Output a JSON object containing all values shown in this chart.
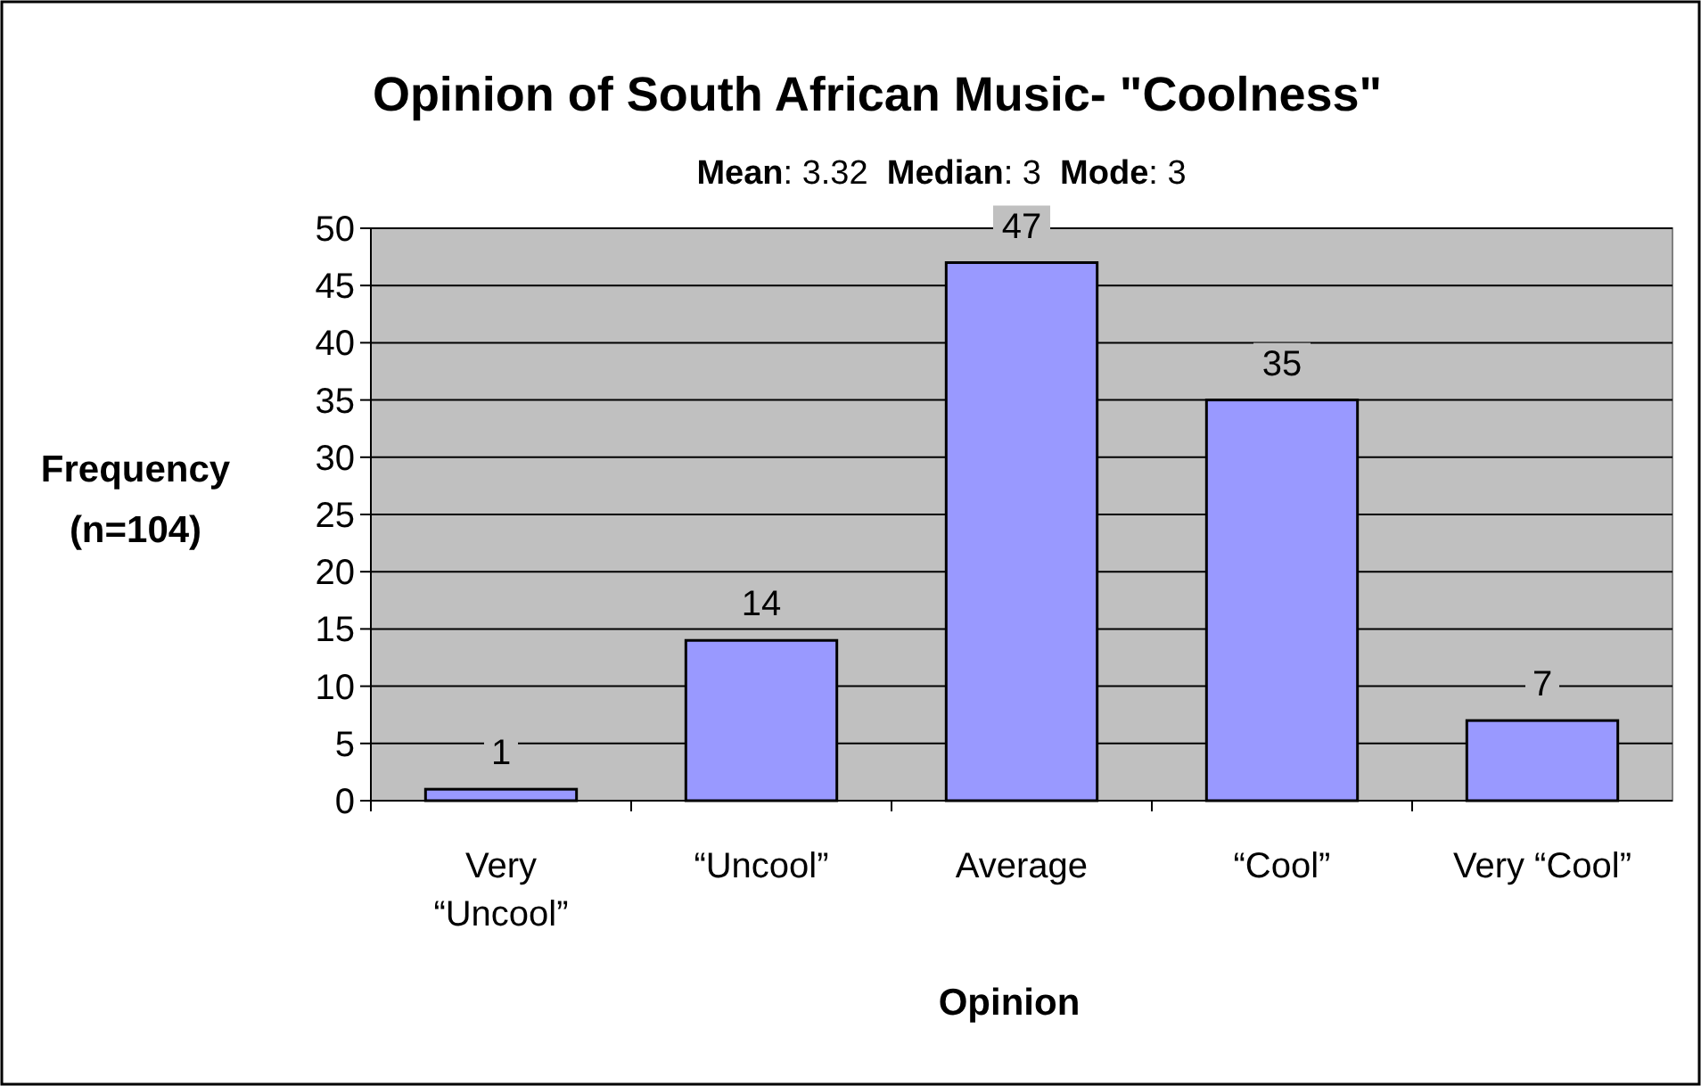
{
  "chart_data": {
    "type": "bar",
    "title": "Opinion of South African Music- \"Coolness\"",
    "subtitle": "Mean: 3.32  Median: 3  Mode: 3",
    "xlabel": "Opinion",
    "ylabel": "Frequency (n=104)",
    "categories": [
      "Very “Uncool”",
      "“Uncool”",
      "Average",
      "“Cool”",
      "Very “Cool”"
    ],
    "values": [
      1,
      14,
      47,
      35,
      7
    ],
    "color": "#9999ff",
    "ylim": [
      0,
      50
    ],
    "yticks": [
      0,
      5,
      10,
      15,
      20,
      25,
      30,
      35,
      40,
      45,
      50
    ],
    "grid": "y",
    "data_labels": true
  }
}
